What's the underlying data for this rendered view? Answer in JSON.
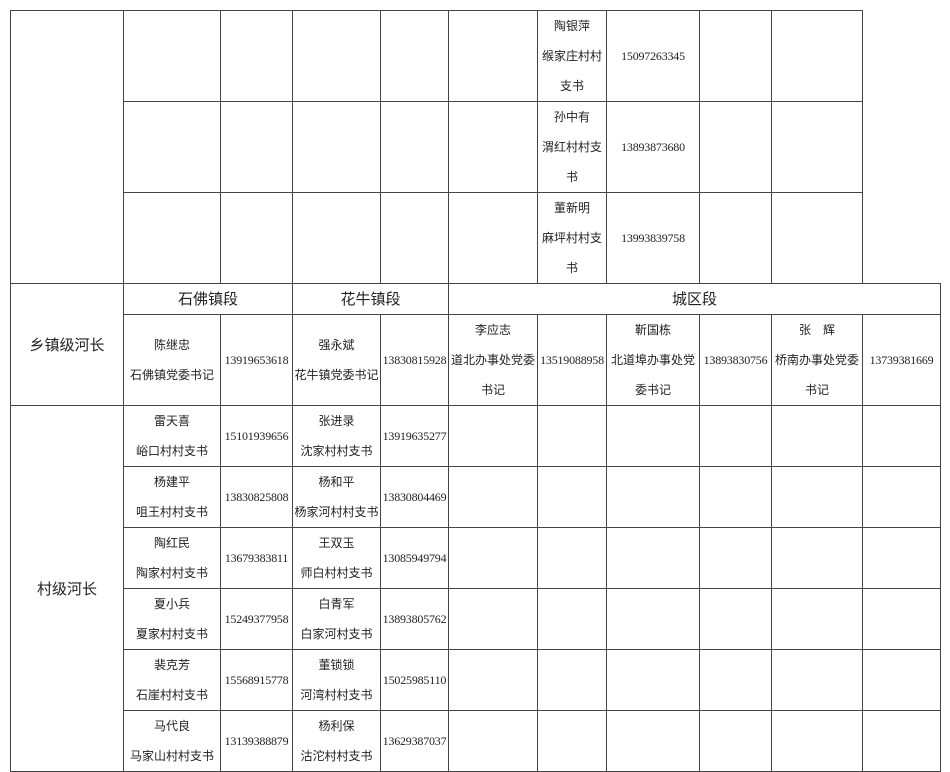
{
  "top_rows": [
    {
      "name": "陶银萍",
      "title": "缑家庄村村支书",
      "phone": "15097263345"
    },
    {
      "name": "孙中有",
      "title": "渭红村村支书",
      "phone": "13893873680"
    },
    {
      "name": "董新明",
      "title": "麻坪村村支书",
      "phone": "13993839758"
    }
  ],
  "township": {
    "label": "乡镇级河长",
    "sections": [
      "石佛镇段",
      "花牛镇段",
      "城区段"
    ],
    "leaders": [
      {
        "name": "陈继忠",
        "title": "石佛镇党委书记",
        "phone": "13919653618"
      },
      {
        "name": "强永斌",
        "title": "花牛镇党委书记",
        "phone": "13830815928"
      },
      {
        "name": "李应志",
        "title": "道北办事处党委书记",
        "phone": "13519088958"
      },
      {
        "name": "靳国栋",
        "title": "北道埠办事处党委书记",
        "phone": "13893830756"
      },
      {
        "name": "张　辉",
        "title": "桥南办事处党委书记",
        "phone": "13739381669"
      }
    ]
  },
  "village": {
    "label": "村级河长",
    "rows": [
      [
        {
          "name": "雷天喜",
          "title": "峪口村村支书",
          "phone": "15101939656"
        },
        {
          "name": "张进录",
          "title": "沈家村村支书",
          "phone": "13919635277"
        }
      ],
      [
        {
          "name": "杨建平",
          "title": "咀王村村支书",
          "phone": "13830825808"
        },
        {
          "name": "杨和平",
          "title": "杨家河村村支书",
          "phone": "13830804469"
        }
      ],
      [
        {
          "name": "陶红民",
          "title": "陶家村村支书",
          "phone": "13679383811"
        },
        {
          "name": "王双玉",
          "title": "师白村村支书",
          "phone": "13085949794"
        }
      ],
      [
        {
          "name": "夏小兵",
          "title": "夏家村村支书",
          "phone": "15249377958"
        },
        {
          "name": "白青军",
          "title": "白家河村支书",
          "phone": "13893805762"
        }
      ],
      [
        {
          "name": "裴克芳",
          "title": "石崖村村支书",
          "phone": "15568915778"
        },
        {
          "name": "董锁锁",
          "title": "河湾村村支书",
          "phone": "15025985110"
        }
      ],
      [
        {
          "name": "马代良",
          "title": "马家山村村支书",
          "phone": "13139388879"
        },
        {
          "name": "杨利保",
          "title": "沽沱村村支书",
          "phone": "13629387037"
        }
      ]
    ]
  }
}
